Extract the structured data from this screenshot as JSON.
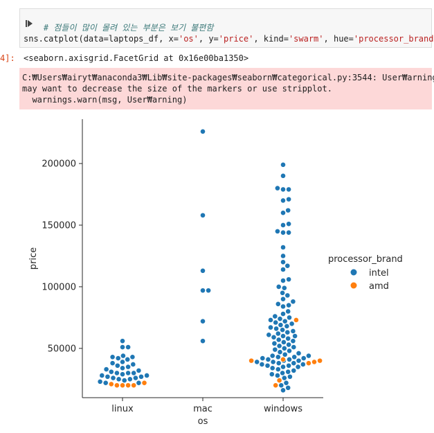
{
  "cell": {
    "comment": "# 점들이 많이 몰려 있는 부분은 보기 불편함",
    "code": {
      "prefix": "sns.catplot(data=laptops_df, x=",
      "x": "'os'",
      "sep1": ", y=",
      "y": "'price'",
      "sep2": ", kind=",
      "kind": "'swarm'",
      "sep3": ", hue=",
      "hue": "'processor_brand'",
      "suffix": ")"
    },
    "prompt": "4]:",
    "output": "<seaborn.axisgrid.FacetGrid at 0x16e00ba1350>",
    "warning": [
      "C:₩Users₩airyt₩anaconda3₩Lib₩site-packages₩seaborn₩categorical.py:3544: User₩arning:",
      "may want to decrease the size of the markers or use stripplot.",
      "  warnings.warn(msg, User₩arning)"
    ]
  },
  "chart_data": {
    "type": "scatter",
    "kind": "swarm",
    "xlabel": "os",
    "ylabel": "price",
    "categories": [
      "linux",
      "mac",
      "windows"
    ],
    "ylim": [
      10000,
      236000
    ],
    "yticks": [
      50000,
      100000,
      150000,
      200000
    ],
    "ytick_labels": [
      "50000",
      "100000",
      "150000",
      "200000"
    ],
    "legend": {
      "title": "processor_brand",
      "placement": "center-right"
    },
    "colors": {
      "intel": "#1f77b4",
      "amd": "#ff7f0e"
    },
    "series": [
      {
        "name": "intel",
        "points": {
          "linux": [
            56000,
            51000,
            51000,
            44000,
            43000,
            43000,
            42000,
            41000,
            39000,
            38000,
            37000,
            36000,
            35000,
            34000,
            33000,
            32000,
            31000,
            30000,
            30000,
            30000,
            29000,
            28000,
            28000,
            27000,
            27000,
            26000,
            26000,
            25000,
            25000,
            24000,
            23000,
            22000,
            22000
          ],
          "mac": [
            226000,
            158000,
            113000,
            97000,
            97000,
            72000,
            56000
          ],
          "windows": [
            199000,
            190000,
            180000,
            179000,
            179000,
            171000,
            170000,
            162000,
            160000,
            151000,
            150000,
            145000,
            144000,
            144000,
            132000,
            125000,
            120000,
            117000,
            114000,
            106000,
            105000,
            100000,
            99000,
            95000,
            93000,
            90000,
            88000,
            86000,
            85000,
            84000,
            80000,
            78000,
            76000,
            75000,
            74000,
            73000,
            72000,
            71000,
            70000,
            69000,
            68000,
            67000,
            66000,
            65000,
            64000,
            63000,
            62000,
            61000,
            60000,
            60000,
            59000,
            58000,
            57000,
            56000,
            55000,
            54000,
            53000,
            52000,
            51000,
            50000,
            49000,
            48000,
            47000,
            46000,
            45000,
            44000,
            44000,
            43000,
            43000,
            42000,
            42000,
            41000,
            41000,
            40000,
            40000,
            39000,
            39000,
            38000,
            38000,
            37000,
            37000,
            36000,
            36000,
            35000,
            35000,
            34000,
            33000,
            32000,
            31000,
            30000,
            29000,
            28000,
            27000,
            26000,
            22000,
            20000,
            18000,
            16000
          ]
        }
      },
      {
        "name": "amd",
        "points": {
          "linux": [
            21000,
            20000,
            20000,
            20000,
            20000,
            22000
          ],
          "mac": [],
          "windows": [
            73000,
            41000,
            40000,
            40000,
            39000,
            38000,
            24000,
            20000
          ]
        }
      }
    ]
  }
}
